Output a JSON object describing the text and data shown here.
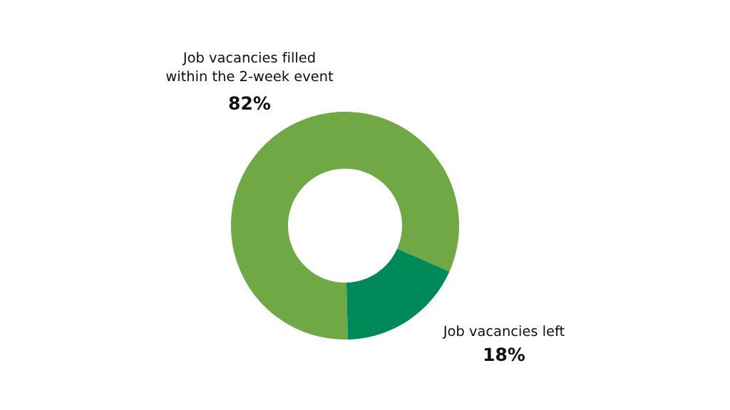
{
  "chart_data": {
    "type": "donut",
    "categories": [
      "Job vacancies filled\nwithin the 2-week event",
      "Job vacancies left"
    ],
    "values": [
      82,
      18
    ],
    "colors": [
      "#70a845",
      "#008a5a"
    ],
    "value_labels": [
      "82%",
      "18%"
    ]
  }
}
